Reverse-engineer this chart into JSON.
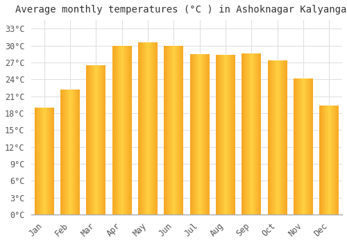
{
  "title": "Average monthly temperatures (°C ) in Ashoknagar Kalyangarh",
  "months": [
    "Jan",
    "Feb",
    "Mar",
    "Apr",
    "May",
    "Jun",
    "Jul",
    "Aug",
    "Sep",
    "Oct",
    "Nov",
    "Dec"
  ],
  "values": [
    19.0,
    22.2,
    26.5,
    30.0,
    30.6,
    30.0,
    28.5,
    28.4,
    28.6,
    27.4,
    24.1,
    19.4
  ],
  "bar_color_left": "#F5A623",
  "bar_color_center": "#FFD040",
  "bar_color_right": "#F5A623",
  "background_color": "#FFFFFF",
  "grid_color": "#E0E0E0",
  "yticks": [
    0,
    3,
    6,
    9,
    12,
    15,
    18,
    21,
    24,
    27,
    30,
    33
  ],
  "ylim": [
    0,
    34.5
  ],
  "title_fontsize": 10,
  "tick_fontsize": 8.5,
  "font_family": "monospace"
}
